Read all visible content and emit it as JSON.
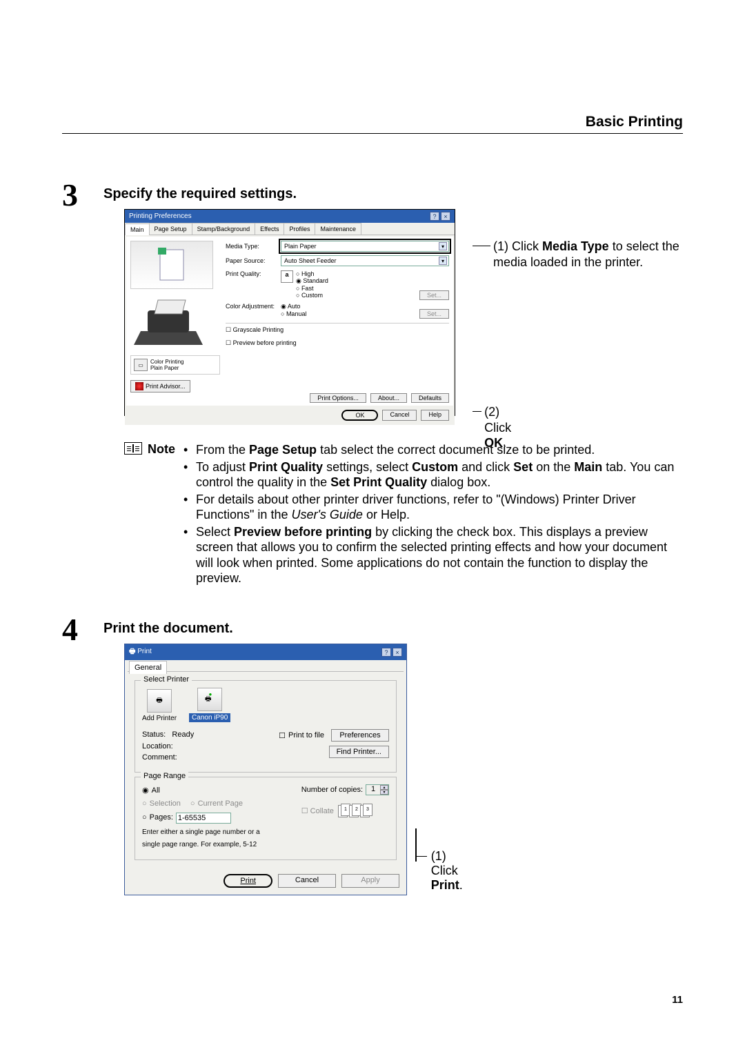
{
  "header": {
    "title": "Basic Printing"
  },
  "step3": {
    "number": "3",
    "title": "Specify the required settings.",
    "dialog": {
      "title": "Printing Preferences",
      "tabs": [
        "Main",
        "Page Setup",
        "Stamp/Background",
        "Effects",
        "Profiles",
        "Maintenance"
      ],
      "active_tab": 0,
      "media_type": {
        "label": "Media Type:",
        "value": "Plain Paper"
      },
      "paper_source": {
        "label": "Paper Source:",
        "value": "Auto Sheet Feeder"
      },
      "print_quality": {
        "label": "Print Quality:",
        "options": [
          "High",
          "Standard",
          "Fast",
          "Custom"
        ],
        "selected": 1,
        "set_btn": "Set..."
      },
      "color_adjust": {
        "label": "Color Adjustment:",
        "options": [
          "Auto",
          "Manual"
        ],
        "selected": 0,
        "set_btn": "Set..."
      },
      "grayscale": "Grayscale Printing",
      "preview": "Preview before printing",
      "profile": {
        "line1": "Color Printing",
        "line2": "Plain Paper"
      },
      "advisor": "Print Advisor...",
      "buttons": {
        "print_options": "Print Options...",
        "about": "About...",
        "defaults": "Defaults",
        "ok": "OK",
        "cancel": "Cancel",
        "help": "Help"
      }
    },
    "callout1": "(1) Click Media Type to select the media loaded in the printer.",
    "callout1_bold": "Media Type",
    "callout2_pre": "(2) Click ",
    "callout2_bold": "OK",
    "callout2_post": "."
  },
  "note": {
    "label": "Note",
    "items": [
      {
        "parts": [
          {
            "t": "From the "
          },
          {
            "t": "Page Setup",
            "b": true
          },
          {
            "t": " tab select the correct document size to be printed."
          }
        ]
      },
      {
        "parts": [
          {
            "t": "To adjust "
          },
          {
            "t": "Print Quality",
            "b": true
          },
          {
            "t": " settings, select "
          },
          {
            "t": "Custom",
            "b": true
          },
          {
            "t": " and click "
          },
          {
            "t": "Set",
            "b": true
          },
          {
            "t": " on the "
          },
          {
            "t": "Main",
            "b": true
          },
          {
            "t": " tab. You can control the quality in the "
          },
          {
            "t": "Set Print Quality",
            "b": true
          },
          {
            "t": " dialog box."
          }
        ]
      },
      {
        "parts": [
          {
            "t": "For details about other printer driver functions, refer to \"(Windows) Printer Driver Functions\" in the "
          },
          {
            "t": "User's Guide ",
            "i": true
          },
          {
            "t": "or Help."
          }
        ]
      },
      {
        "parts": [
          {
            "t": "Select "
          },
          {
            "t": "Preview before printing",
            "b": true
          },
          {
            "t": " by clicking the check box. This displays a preview screen that allows you to confirm the selected printing effects and how your document will look when printed. Some applications do not contain the function to display the preview."
          }
        ]
      }
    ]
  },
  "step4": {
    "number": "4",
    "title": "Print the document.",
    "dialog": {
      "title": "Print",
      "general_tab": "General",
      "select_printer": {
        "legend": "Select Printer",
        "add": "Add Printer",
        "selected": "Canon iP90"
      },
      "status": {
        "label": "Status:",
        "value": "Ready"
      },
      "location": "Location:",
      "comment": "Comment:",
      "print_to_file": "Print to file",
      "preferences": "Preferences",
      "find_printer": "Find Printer...",
      "page_range": {
        "legend": "Page Range",
        "all": "All",
        "selection": "Selection",
        "current": "Current Page",
        "pages": "Pages:",
        "pages_value": "1-65535",
        "hint": "Enter either a single page number or a single page range.  For example, 5-12"
      },
      "copies": {
        "label": "Number of copies:",
        "value": "1"
      },
      "collate": "Collate",
      "buttons": {
        "print": "Print",
        "cancel": "Cancel",
        "apply": "Apply"
      }
    },
    "callout_pre": "(1) Click ",
    "callout_bold": "Print",
    "callout_post": "."
  },
  "page_number": "11"
}
